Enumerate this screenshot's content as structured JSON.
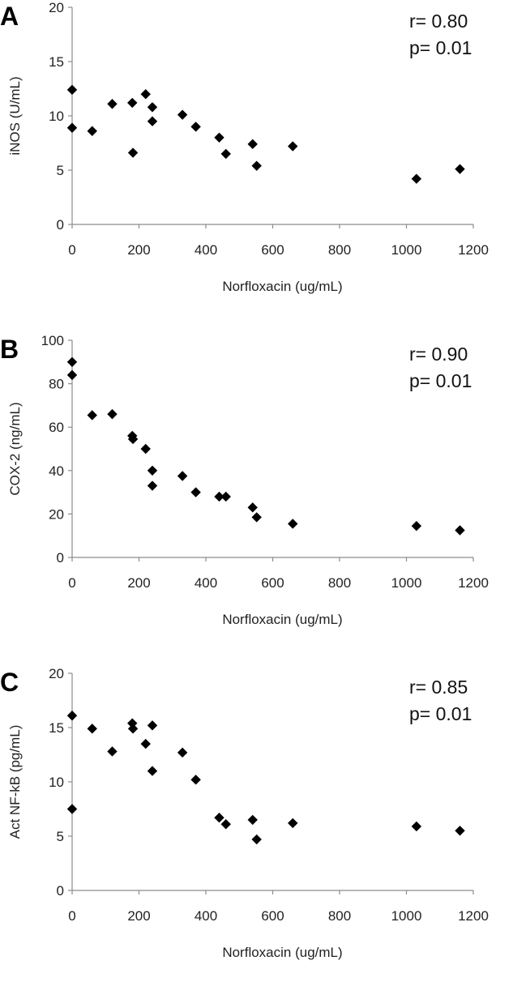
{
  "chart_data": [
    {
      "type": "scatter",
      "panel_label": "A",
      "title": "",
      "xlabel": "Norfloxacin (ug/mL)",
      "ylabel": "iNOS (U/mL)",
      "xlim": [
        0,
        1200
      ],
      "ylim": [
        0,
        20
      ],
      "xticks": [
        "0",
        "200",
        "400",
        "600",
        "800",
        "1000",
        "1200"
      ],
      "yticks": [
        "0",
        "5",
        "10",
        "15",
        "20"
      ],
      "grid": false,
      "annotation": [
        "r= 0.80",
        "p= 0.01"
      ],
      "points": [
        {
          "x": 0,
          "y": 12.4
        },
        {
          "x": 0,
          "y": 8.9
        },
        {
          "x": 60,
          "y": 8.6
        },
        {
          "x": 120,
          "y": 11.1
        },
        {
          "x": 180,
          "y": 11.2
        },
        {
          "x": 182,
          "y": 6.6
        },
        {
          "x": 220,
          "y": 12.0
        },
        {
          "x": 240,
          "y": 10.8
        },
        {
          "x": 240,
          "y": 9.5
        },
        {
          "x": 330,
          "y": 10.1
        },
        {
          "x": 370,
          "y": 9.0
        },
        {
          "x": 440,
          "y": 8.0
        },
        {
          "x": 460,
          "y": 6.5
        },
        {
          "x": 540,
          "y": 7.4
        },
        {
          "x": 552,
          "y": 5.4
        },
        {
          "x": 660,
          "y": 7.2
        },
        {
          "x": 1030,
          "y": 4.2
        },
        {
          "x": 1160,
          "y": 5.1
        }
      ]
    },
    {
      "type": "scatter",
      "panel_label": "B",
      "title": "",
      "xlabel": "Norfloxacin (ug/mL)",
      "ylabel": "COX-2 (ng/mL)",
      "xlim": [
        0,
        1200
      ],
      "ylim": [
        0,
        100
      ],
      "xticks": [
        "0",
        "200",
        "400",
        "600",
        "800",
        "1000",
        "1200"
      ],
      "yticks": [
        "0",
        "20",
        "40",
        "60",
        "80",
        "100"
      ],
      "grid": false,
      "annotation": [
        "r= 0.90",
        "p= 0.01"
      ],
      "points": [
        {
          "x": 0,
          "y": 90
        },
        {
          "x": 0,
          "y": 84
        },
        {
          "x": 60,
          "y": 65.5
        },
        {
          "x": 120,
          "y": 66
        },
        {
          "x": 180,
          "y": 56
        },
        {
          "x": 182,
          "y": 54.5
        },
        {
          "x": 220,
          "y": 50
        },
        {
          "x": 240,
          "y": 40
        },
        {
          "x": 240,
          "y": 33
        },
        {
          "x": 330,
          "y": 37.5
        },
        {
          "x": 370,
          "y": 30
        },
        {
          "x": 440,
          "y": 28
        },
        {
          "x": 460,
          "y": 28
        },
        {
          "x": 540,
          "y": 23
        },
        {
          "x": 552,
          "y": 18.5
        },
        {
          "x": 660,
          "y": 15.5
        },
        {
          "x": 1030,
          "y": 14.5
        },
        {
          "x": 1160,
          "y": 12.5
        }
      ]
    },
    {
      "type": "scatter",
      "panel_label": "C",
      "title": "",
      "xlabel": "Norfloxacin (ug/mL)",
      "ylabel": "Act NF-kB (pg/mL)",
      "xlim": [
        0,
        1200
      ],
      "ylim": [
        0,
        20
      ],
      "xticks": [
        "0",
        "200",
        "400",
        "600",
        "800",
        "1000",
        "1200"
      ],
      "yticks": [
        "0",
        "5",
        "10",
        "15",
        "20"
      ],
      "grid": false,
      "annotation": [
        "r= 0.85",
        "p= 0.01"
      ],
      "points": [
        {
          "x": 0,
          "y": 16.1
        },
        {
          "x": 0,
          "y": 7.5
        },
        {
          "x": 60,
          "y": 14.9
        },
        {
          "x": 120,
          "y": 12.8
        },
        {
          "x": 180,
          "y": 15.4
        },
        {
          "x": 182,
          "y": 14.9
        },
        {
          "x": 220,
          "y": 13.5
        },
        {
          "x": 240,
          "y": 15.2
        },
        {
          "x": 240,
          "y": 11.0
        },
        {
          "x": 330,
          "y": 12.7
        },
        {
          "x": 370,
          "y": 10.2
        },
        {
          "x": 440,
          "y": 6.7
        },
        {
          "x": 460,
          "y": 6.1
        },
        {
          "x": 540,
          "y": 6.5
        },
        {
          "x": 552,
          "y": 4.7
        },
        {
          "x": 660,
          "y": 6.2
        },
        {
          "x": 1030,
          "y": 5.9
        },
        {
          "x": 1160,
          "y": 5.5
        }
      ]
    }
  ]
}
